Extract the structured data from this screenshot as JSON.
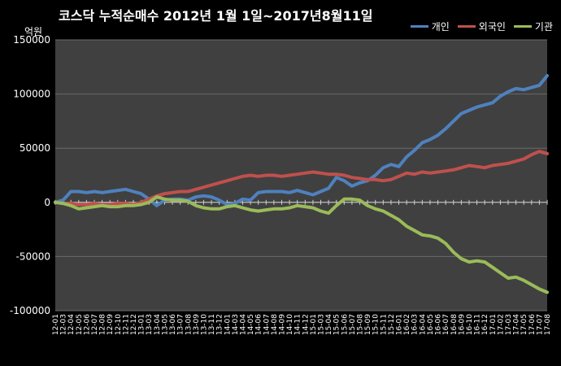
{
  "chart_data": {
    "type": "line",
    "title": "코스닥  누적순매수 2012년 1월 1일~2017년8월11일",
    "ylabel": "억원",
    "xlabel": "",
    "ylim": [
      -100000,
      150000
    ],
    "yticks": [
      -100000,
      -50000,
      0,
      50000,
      100000,
      150000
    ],
    "ytick_labels": [
      "-100000",
      "-50000",
      "0",
      "50000",
      "100000",
      "150000"
    ],
    "grid": true,
    "legend_position": "top-right",
    "x_labels": [
      "12-01",
      "12-03",
      "12-04",
      "12-05",
      "12-06",
      "12-07",
      "12-08",
      "12-09",
      "12-10",
      "12-11",
      "12-12",
      "13-01",
      "13-03",
      "13-04",
      "13-05",
      "13-06",
      "13-07",
      "13-08",
      "13-09",
      "13-10",
      "13-11",
      "13-12",
      "14-01",
      "14-03",
      "14-04",
      "14-05",
      "14-06",
      "14-07",
      "14-08",
      "14-09",
      "14-10",
      "14-11",
      "14-12",
      "15-01",
      "15-03",
      "15-04",
      "15-05",
      "15-06",
      "15-07",
      "15-08",
      "15-09",
      "15-10",
      "15-11",
      "15-12",
      "16-01",
      "16-02",
      "16-03",
      "16-04",
      "16-05",
      "16-06",
      "16-07",
      "16-08",
      "16-09",
      "16-10",
      "16-11",
      "16-12",
      "17-01",
      "17-02",
      "17-03",
      "17-04",
      "17-05",
      "17-06",
      "17-07",
      "17-08"
    ],
    "series": [
      {
        "name": "개인",
        "color": "#4F81BD",
        "values": [
          0,
          2000,
          10000,
          10000,
          9000,
          10000,
          9000,
          10000,
          11000,
          12000,
          10000,
          8000,
          3000,
          -3000,
          2000,
          3000,
          3000,
          2000,
          5000,
          6000,
          5000,
          2000,
          -2000,
          -1000,
          3000,
          2000,
          9000,
          10000,
          10000,
          10000,
          9000,
          11000,
          9000,
          7000,
          10000,
          13000,
          23000,
          20000,
          15000,
          18000,
          20000,
          25000,
          32000,
          35000,
          33000,
          42000,
          48000,
          55000,
          58000,
          62000,
          68000,
          75000,
          82000,
          85000,
          88000,
          90000,
          92000,
          98000,
          102000,
          105000,
          104000,
          106000,
          108000,
          117000
        ]
      },
      {
        "name": "외국인",
        "color": "#C0504D",
        "values": [
          0,
          -1000,
          -1000,
          -2000,
          -2000,
          -1000,
          -2000,
          -2000,
          -1000,
          -1000,
          -2000,
          0,
          3000,
          6000,
          8000,
          9000,
          10000,
          10000,
          12000,
          14000,
          16000,
          18000,
          20000,
          22000,
          24000,
          25000,
          24000,
          25000,
          25000,
          24000,
          25000,
          26000,
          27000,
          28000,
          27000,
          26000,
          26000,
          25000,
          23000,
          22000,
          21000,
          21000,
          20000,
          21000,
          24000,
          27000,
          26000,
          28000,
          27000,
          28000,
          29000,
          30000,
          32000,
          34000,
          33000,
          32000,
          34000,
          35000,
          36000,
          38000,
          40000,
          44000,
          47000,
          45000
        ]
      },
      {
        "name": "기관",
        "color": "#9BBB59",
        "values": [
          0,
          -1000,
          -3000,
          -6000,
          -5000,
          -4000,
          -3000,
          -4000,
          -4000,
          -3000,
          -3000,
          -2000,
          0,
          5000,
          3000,
          2000,
          2000,
          1000,
          -3000,
          -5000,
          -6000,
          -6000,
          -4000,
          -3000,
          -5000,
          -7000,
          -8000,
          -7000,
          -6000,
          -6000,
          -5000,
          -3000,
          -4000,
          -5000,
          -8000,
          -10000,
          -3000,
          3000,
          3000,
          2000,
          -3000,
          -6000,
          -8000,
          -12000,
          -16000,
          -22000,
          -26000,
          -30000,
          -31000,
          -33000,
          -38000,
          -46000,
          -52000,
          -55000,
          -54000,
          -55000,
          -60000,
          -65000,
          -70000,
          -69000,
          -72000,
          -76000,
          -80000,
          -83000
        ]
      }
    ]
  }
}
